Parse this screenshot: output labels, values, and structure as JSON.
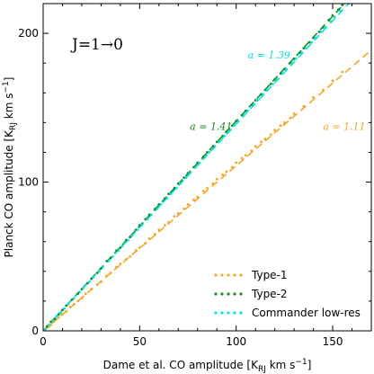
{
  "chart_data": {
    "type": "scatter",
    "panel_label": "J=1→0",
    "xlabel": "Dame et al. CO amplitude [K_RJ km s^-1]",
    "ylabel": "Planck CO amplitude [K_RJ km s^-1]",
    "xlabel_main": "Dame et al. CO amplitude [K",
    "ylabel_main": "Planck CO amplitude [K",
    "label_subscript": "RJ",
    "label_unit": " km s",
    "label_exponent": "−1",
    "label_close": "]",
    "xlim": [
      0,
      170
    ],
    "ylim": [
      0,
      220
    ],
    "xticks": [
      0,
      50,
      100,
      150
    ],
    "yticks": [
      0,
      100,
      200
    ],
    "grid": false,
    "legend_position": "bottom-right",
    "series": [
      {
        "name": "Type-1",
        "color": "#f5a623",
        "slope": 1.11,
        "fit_xmax": 170,
        "points_x": [
          1,
          2,
          3,
          4,
          5,
          6,
          8,
          10,
          12,
          14,
          16,
          18,
          20,
          22,
          25,
          28,
          30,
          33,
          35,
          38,
          40,
          43,
          45,
          48,
          50,
          53,
          55,
          58,
          60,
          63,
          65,
          68,
          70,
          73,
          75,
          78,
          80,
          83,
          85,
          88,
          90,
          93,
          95,
          98,
          100,
          103,
          105,
          108,
          110,
          113,
          115,
          118,
          120,
          123,
          125,
          128,
          130,
          135,
          140,
          145,
          150,
          155
        ],
        "points_y": [
          1,
          2,
          3,
          4,
          6,
          7,
          9,
          11,
          13,
          16,
          18,
          20,
          22,
          25,
          28,
          31,
          33,
          37,
          39,
          43,
          45,
          48,
          50,
          54,
          56,
          59,
          62,
          65,
          68,
          71,
          73,
          77,
          79,
          82,
          85,
          88,
          90,
          94,
          96,
          99,
          102,
          105,
          107,
          110,
          113,
          116,
          118,
          121,
          124,
          127,
          129,
          132,
          135,
          138,
          140,
          143,
          146,
          151,
          157,
          162,
          168,
          174
        ]
      },
      {
        "name": "Type-2",
        "color": "#1a8a1a",
        "slope": 1.41,
        "fit_xmax": 160,
        "points_x": [
          1,
          2,
          4,
          6,
          8,
          10,
          12,
          15,
          18,
          20,
          23,
          25,
          28,
          30,
          33,
          35,
          38,
          40,
          43,
          45,
          48,
          50,
          53,
          55,
          58,
          60,
          63,
          65,
          68,
          70,
          73,
          75,
          78,
          80,
          83,
          85,
          88,
          90,
          93,
          95,
          98,
          100,
          103,
          105,
          108,
          110,
          113,
          115,
          118,
          120,
          123,
          125,
          128,
          130,
          133,
          135,
          138,
          140,
          143,
          145,
          148,
          150,
          153,
          155
        ],
        "points_y": [
          1,
          3,
          6,
          8,
          11,
          14,
          17,
          21,
          25,
          28,
          32,
          35,
          39,
          42,
          47,
          49,
          54,
          56,
          61,
          63,
          68,
          71,
          75,
          78,
          82,
          85,
          89,
          92,
          96,
          99,
          103,
          106,
          110,
          113,
          117,
          120,
          124,
          127,
          131,
          134,
          138,
          141,
          145,
          148,
          152,
          155,
          159,
          162,
          166,
          169,
          173,
          176,
          180,
          183,
          187,
          190,
          194,
          197,
          201,
          204,
          209,
          212,
          216,
          219
        ]
      },
      {
        "name": "Commander low-res",
        "color": "#00e5e5",
        "slope": 1.39,
        "fit_xmax": 160,
        "points_x": [
          1,
          3,
          5,
          7,
          9,
          11,
          13,
          16,
          19,
          21,
          24,
          26,
          29,
          31,
          34,
          36,
          39,
          41,
          44,
          46,
          49,
          51,
          54,
          56,
          59,
          61,
          64,
          66,
          69,
          71,
          74,
          76,
          79,
          81,
          84,
          86,
          89,
          91,
          94,
          96,
          99,
          101,
          104,
          106,
          109,
          111,
          114,
          116,
          119,
          121,
          124,
          126,
          129,
          131,
          134,
          136,
          139,
          141,
          144,
          146,
          149,
          151,
          154
        ],
        "points_y": [
          1,
          4,
          7,
          10,
          12,
          15,
          18,
          22,
          26,
          29,
          33,
          36,
          40,
          43,
          47,
          50,
          54,
          57,
          61,
          64,
          68,
          71,
          75,
          78,
          82,
          85,
          89,
          92,
          96,
          99,
          103,
          106,
          110,
          113,
          117,
          120,
          124,
          127,
          131,
          134,
          138,
          141,
          145,
          148,
          152,
          155,
          159,
          162,
          166,
          169,
          173,
          176,
          180,
          183,
          187,
          190,
          194,
          197,
          201,
          204,
          208,
          211,
          215
        ]
      }
    ],
    "annotations": [
      {
        "text": "a = 1.39",
        "series": "Commander low-res",
        "x": 106,
        "y": 183
      },
      {
        "text": "a = 1.41",
        "series": "Type-2",
        "x": 76,
        "y": 135
      },
      {
        "text": "a = 1.11",
        "series": "Type-1",
        "x": 145,
        "y": 135
      }
    ]
  }
}
